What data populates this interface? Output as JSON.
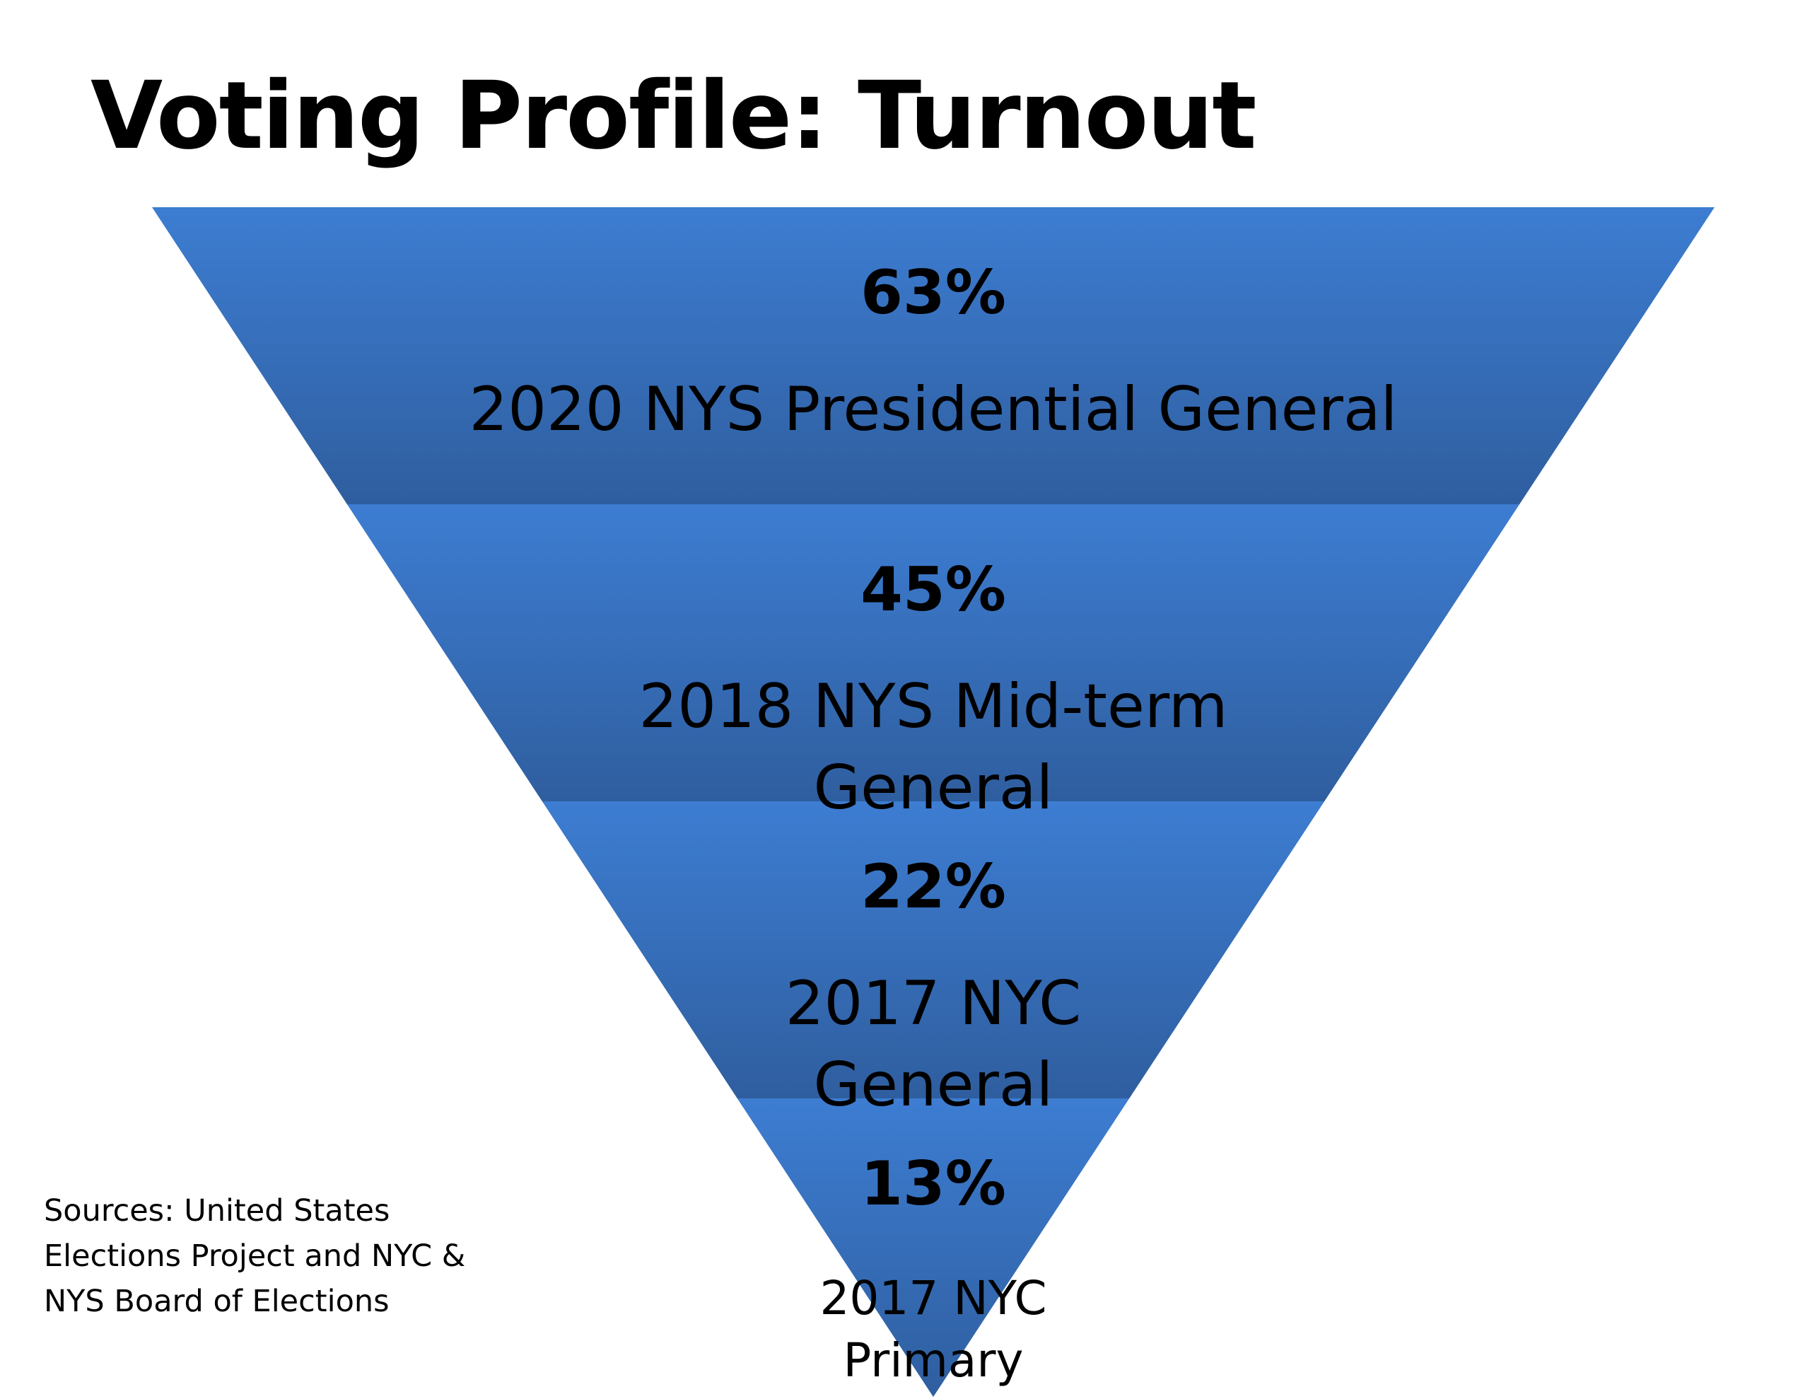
{
  "title": "Voting Profile: Turnout",
  "sources": [
    "Sources: United States",
    "Elections Project and NYC &",
    "NYS Board of Elections"
  ],
  "colors": {
    "band_top": "#3d7dd2",
    "band_bottom": "#2f5e9f",
    "text": "#000000"
  },
  "funnel": {
    "levels": [
      {
        "value": "63%",
        "label_lines": [
          "2020 NYS Presidential General"
        ]
      },
      {
        "value": "45%",
        "label_lines": [
          "2018 NYS Mid-term",
          "General"
        ]
      },
      {
        "value": "22%",
        "label_lines": [
          "2017 NYC",
          "General"
        ]
      },
      {
        "value": "13%",
        "label_lines": [
          "2017 NYC",
          "Primary"
        ]
      }
    ]
  }
}
